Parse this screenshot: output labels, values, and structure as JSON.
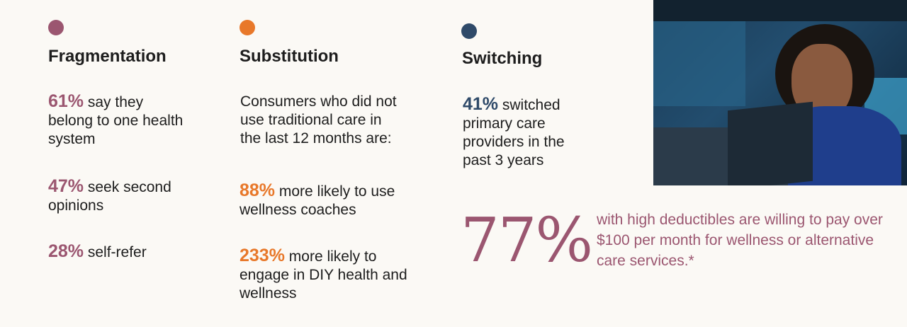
{
  "colors": {
    "fragmentation": "#9b5670",
    "substitution": "#e8782a",
    "switching": "#2f4a69",
    "callout": "#9b5670"
  },
  "fragmentation": {
    "title": "Fragmentation",
    "stats": [
      {
        "num": "61%",
        "text": " say they belong to one health system"
      },
      {
        "num": "47%",
        "text": " seek second opinions"
      },
      {
        "num": "28%",
        "text": " self-refer"
      }
    ]
  },
  "substitution": {
    "title": "Substitution",
    "intro": "Consumers who did not use traditional care in the last 12 months are:",
    "stats": [
      {
        "num": "88%",
        "text": " more likely to use wellness coaches"
      },
      {
        "num": "233%",
        "text": " more likely to engage in DIY health and wellness"
      }
    ]
  },
  "switching": {
    "title": "Switching",
    "stats": [
      {
        "num": "41%",
        "text": " switched primary care providers in the past 3 years"
      }
    ]
  },
  "callout": {
    "num": "77%",
    "text": "with high deductibles are willing to pay over $100 per month for wellness or alternative care services.*"
  }
}
